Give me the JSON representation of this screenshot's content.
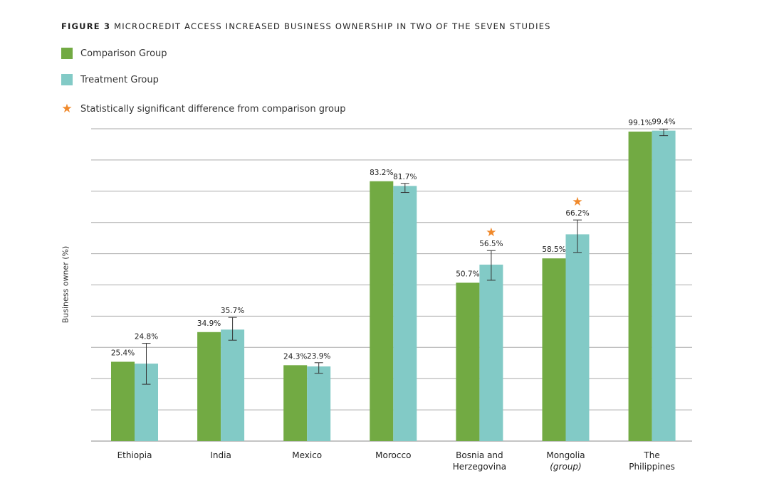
{
  "title": {
    "label": "FIGURE 3",
    "text": "MICROCREDIT ACCESS INCREASED BUSINESS OWNERSHIP IN TWO OF THE SEVEN STUDIES"
  },
  "legend": [
    {
      "label": "Comparison Group",
      "color": "#72aa43"
    },
    {
      "label": "Treatment Group",
      "color": "#82cac6"
    },
    {
      "label": "Statistically significant difference from comparison group",
      "icon": "star-icon",
      "color": "#f0892b"
    }
  ],
  "chart_data": {
    "type": "bar",
    "ylabel": "Business owner (%)",
    "ylim": [
      0,
      100
    ],
    "grid": true,
    "legend_placement": "top-left",
    "categories": [
      [
        "Ethiopia"
      ],
      [
        "India"
      ],
      [
        "Mexico"
      ],
      [
        "Morocco"
      ],
      [
        "Bosnia and",
        "Herzegovina"
      ],
      [
        "Mongolia",
        "(group)"
      ],
      [
        "The",
        "Philippines"
      ]
    ],
    "series": [
      {
        "name": "Comparison Group",
        "color": "#72aa43",
        "values": [
          25.4,
          34.9,
          24.3,
          83.2,
          50.7,
          58.5,
          99.1
        ],
        "labels": [
          "25.4%",
          "34.9%",
          "24.3%",
          "83.2%",
          "50.7%",
          "58.5%",
          "99.1%"
        ]
      },
      {
        "name": "Treatment Group",
        "color": "#82cac6",
        "values": [
          24.8,
          35.7,
          23.9,
          81.7,
          56.5,
          66.2,
          99.4
        ],
        "labels": [
          "24.8%",
          "35.7%",
          "23.9%",
          "81.7%",
          "56.5%",
          "66.2%",
          "99.4%"
        ],
        "error_low": [
          18.2,
          32.3,
          21.7,
          79.6,
          51.5,
          60.4,
          97.8
        ],
        "error_high": [
          31.3,
          39.6,
          25.1,
          82.5,
          61.0,
          70.8,
          99.9
        ],
        "significant": [
          false,
          false,
          false,
          false,
          true,
          true,
          false
        ]
      }
    ]
  }
}
